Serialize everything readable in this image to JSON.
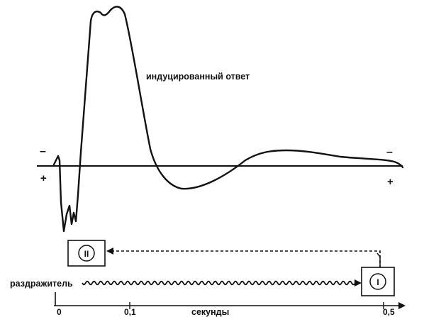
{
  "response_label": "индуцированный ответ",
  "stimulus_label": "раздражитель",
  "time_axis": {
    "label": "секунды",
    "ticks": [
      "0",
      "0,1",
      "0,5"
    ]
  },
  "polarity": {
    "left_top": "–",
    "left_bottom": "+",
    "right_top": "–",
    "right_bottom": "+"
  },
  "blocks": {
    "block_1": "I",
    "block_2": "II"
  }
}
